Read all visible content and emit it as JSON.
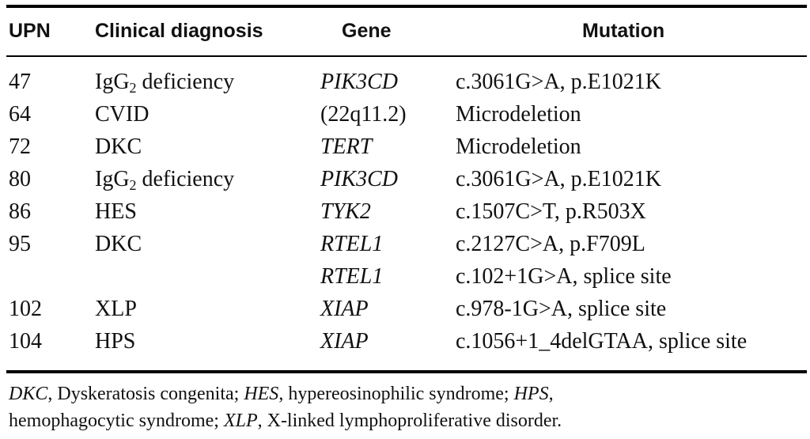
{
  "table": {
    "headers": {
      "upn": "UPN",
      "diagnosis": "Clinical diagnosis",
      "gene": "Gene",
      "mutation": "Mutation"
    },
    "rows": [
      {
        "upn": "47",
        "dx_pre": "IgG",
        "dx_sub": "2",
        "dx_post": " deficiency",
        "gene": "PIK3CD",
        "gene_italic": true,
        "mutation": "c.3061G>A, p.E1021K"
      },
      {
        "upn": "64",
        "dx_pre": "CVID",
        "dx_sub": "",
        "dx_post": "",
        "gene": "(22q11.2)",
        "gene_italic": false,
        "mutation": "Microdeletion"
      },
      {
        "upn": "72",
        "dx_pre": "DKC",
        "dx_sub": "",
        "dx_post": "",
        "gene": "TERT",
        "gene_italic": true,
        "mutation": "Microdeletion"
      },
      {
        "upn": "80",
        "dx_pre": "IgG",
        "dx_sub": "2",
        "dx_post": " deficiency",
        "gene": "PIK3CD",
        "gene_italic": true,
        "mutation": "c.3061G>A, p.E1021K"
      },
      {
        "upn": "86",
        "dx_pre": "HES",
        "dx_sub": "",
        "dx_post": "",
        "gene": "TYK2",
        "gene_italic": true,
        "mutation": "c.1507C>T, p.R503X"
      },
      {
        "upn": "95",
        "dx_pre": "DKC",
        "dx_sub": "",
        "dx_post": "",
        "gene": "RTEL1",
        "gene_italic": true,
        "mutation": "c.2127C>A, p.F709L"
      },
      {
        "upn": "",
        "dx_pre": "",
        "dx_sub": "",
        "dx_post": "",
        "gene": "RTEL1",
        "gene_italic": true,
        "mutation": "c.102+1G>A, splice site"
      },
      {
        "upn": "102",
        "dx_pre": "XLP",
        "dx_sub": "",
        "dx_post": "",
        "gene": "XIAP",
        "gene_italic": true,
        "mutation": "c.978-1G>A, splice site"
      },
      {
        "upn": "104",
        "dx_pre": "HPS",
        "dx_sub": "",
        "dx_post": "",
        "gene": "XIAP",
        "gene_italic": true,
        "mutation": "c.1056+1_4delGTAA, splice site"
      }
    ]
  },
  "footnote": {
    "dkc_abbr": "DKC",
    "dkc_text": ", Dyskeratosis congenita; ",
    "hes_abbr": "HES",
    "hes_text": ", hypereosinophilic syndrome; ",
    "hps_abbr": "HPS",
    "hps_text": ",",
    "line2_text": "hemophagocytic syndrome; ",
    "xlp_abbr": "XLP",
    "xlp_text": ", X-linked lymphoproliferative disorder."
  }
}
